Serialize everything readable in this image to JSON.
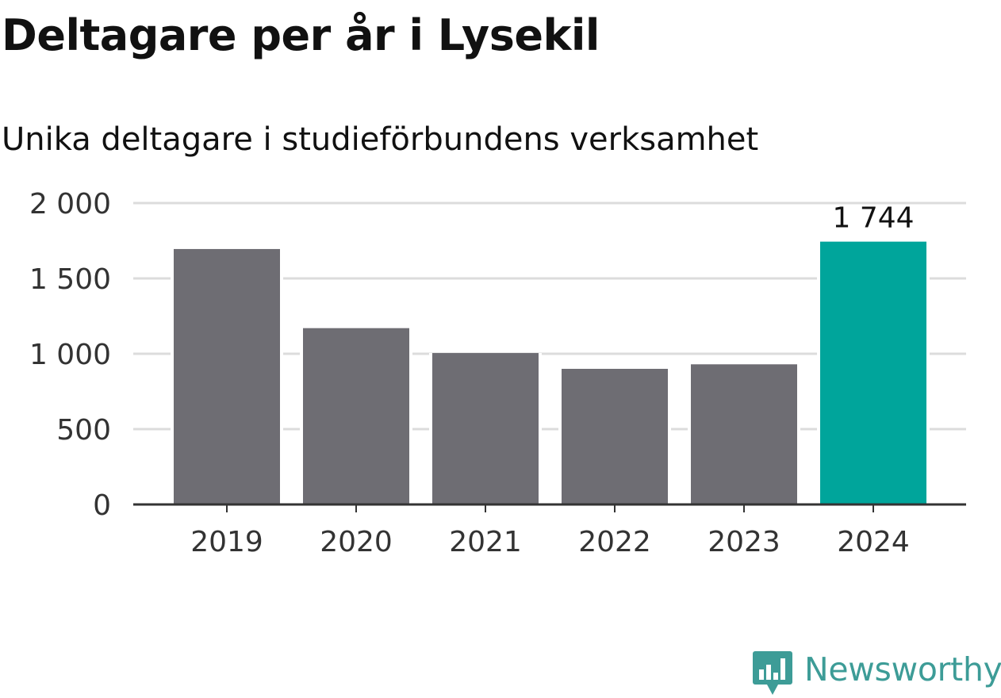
{
  "header": {
    "title": "Deltagare per år i Lysekil",
    "subtitle": "Unika deltagare i studieförbundens verksamhet"
  },
  "chart_data": {
    "type": "bar",
    "categories": [
      "2019",
      "2020",
      "2021",
      "2022",
      "2023",
      "2024"
    ],
    "values": [
      1695,
      1170,
      1005,
      900,
      930,
      1744
    ],
    "ylim": [
      0,
      2000
    ],
    "yticks": [
      {
        "value": 0,
        "label": "0"
      },
      {
        "value": 500,
        "label": "500"
      },
      {
        "value": 1000,
        "label": "1 000"
      },
      {
        "value": 1500,
        "label": "1 500"
      },
      {
        "value": 2000,
        "label": "2 000"
      }
    ],
    "grid": true,
    "data_labels": [
      {
        "index": 5,
        "text": "1 744"
      }
    ],
    "colors": {
      "default_bar": "#6e6d73",
      "highlight_bar": "#00a59b",
      "grid": "#dcdcdc",
      "axis": "#333333",
      "tick_text": "#333333"
    },
    "highlight_index": 5
  },
  "branding": {
    "logo_text": "Newsworthy",
    "logo_icon": "bar-chart-speech-bubble-icon",
    "logo_color": "#3d9c97"
  }
}
